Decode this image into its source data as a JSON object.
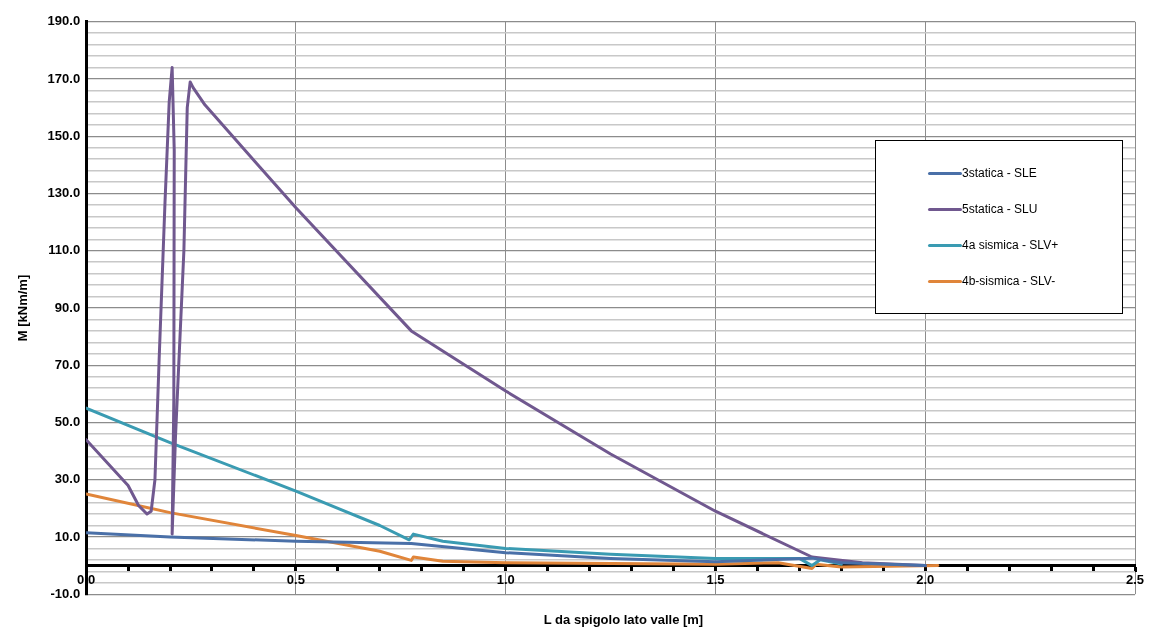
{
  "chart_data": {
    "type": "line",
    "xlabel": "L da spigolo lato valle [m]",
    "ylabel": "M [kNm/m]",
    "xlim": [
      0,
      2.5
    ],
    "ylim": [
      -10,
      190
    ],
    "xticks": [
      {
        "value": 0,
        "label": "0.0"
      },
      {
        "value": 0.1,
        "label": null
      },
      {
        "value": 0.2,
        "label": null
      },
      {
        "value": 0.3,
        "label": null
      },
      {
        "value": 0.4,
        "label": null
      },
      {
        "value": 0.5,
        "label": "0.5"
      },
      {
        "value": 0.6,
        "label": null
      },
      {
        "value": 0.7,
        "label": null
      },
      {
        "value": 0.8,
        "label": null
      },
      {
        "value": 0.9,
        "label": null
      },
      {
        "value": 1,
        "label": "1.0"
      },
      {
        "value": 1.1,
        "label": null
      },
      {
        "value": 1.2,
        "label": null
      },
      {
        "value": 1.3,
        "label": null
      },
      {
        "value": 1.4,
        "label": null
      },
      {
        "value": 1.5,
        "label": "1.5"
      },
      {
        "value": 1.6,
        "label": null
      },
      {
        "value": 1.7,
        "label": null
      },
      {
        "value": 1.8,
        "label": null
      },
      {
        "value": 1.9,
        "label": null
      },
      {
        "value": 2,
        "label": "2.0"
      },
      {
        "value": 2.1,
        "label": null
      },
      {
        "value": 2.2,
        "label": null
      },
      {
        "value": 2.3,
        "label": null
      },
      {
        "value": 2.4,
        "label": null
      },
      {
        "value": 2.5,
        "label": "2.5"
      }
    ],
    "yticks": [
      {
        "value": -10,
        "label": "-10.0"
      },
      {
        "value": -6,
        "label": null
      },
      {
        "value": -2,
        "label": null
      },
      {
        "value": 2,
        "label": null
      },
      {
        "value": 6,
        "label": null
      },
      {
        "value": 10,
        "label": "10.0"
      },
      {
        "value": 14,
        "label": null
      },
      {
        "value": 18,
        "label": null
      },
      {
        "value": 22,
        "label": null
      },
      {
        "value": 26,
        "label": null
      },
      {
        "value": 30,
        "label": "30.0"
      },
      {
        "value": 34,
        "label": null
      },
      {
        "value": 38,
        "label": null
      },
      {
        "value": 42,
        "label": null
      },
      {
        "value": 46,
        "label": null
      },
      {
        "value": 50,
        "label": "50.0"
      },
      {
        "value": 54,
        "label": null
      },
      {
        "value": 58,
        "label": null
      },
      {
        "value": 62,
        "label": null
      },
      {
        "value": 66,
        "label": null
      },
      {
        "value": 70,
        "label": "70.0"
      },
      {
        "value": 74,
        "label": null
      },
      {
        "value": 78,
        "label": null
      },
      {
        "value": 82,
        "label": null
      },
      {
        "value": 86,
        "label": null
      },
      {
        "value": 90,
        "label": "90.0"
      },
      {
        "value": 94,
        "label": null
      },
      {
        "value": 98,
        "label": null
      },
      {
        "value": 102,
        "label": null
      },
      {
        "value": 106,
        "label": null
      },
      {
        "value": 110,
        "label": "110.0"
      },
      {
        "value": 114,
        "label": null
      },
      {
        "value": 118,
        "label": null
      },
      {
        "value": 122,
        "label": null
      },
      {
        "value": 126,
        "label": null
      },
      {
        "value": 130,
        "label": "130.0"
      },
      {
        "value": 134,
        "label": null
      },
      {
        "value": 138,
        "label": null
      },
      {
        "value": 142,
        "label": null
      },
      {
        "value": 146,
        "label": null
      },
      {
        "value": 150,
        "label": "150.0"
      },
      {
        "value": 154,
        "label": null
      },
      {
        "value": 158,
        "label": null
      },
      {
        "value": 162,
        "label": null
      },
      {
        "value": 166,
        "label": null
      },
      {
        "value": 170,
        "label": "170.0"
      },
      {
        "value": 174,
        "label": null
      },
      {
        "value": 178,
        "label": null
      },
      {
        "value": 182,
        "label": null
      },
      {
        "value": 186,
        "label": null
      },
      {
        "value": 190,
        "label": "190.0"
      }
    ],
    "grid": true,
    "legend": "right",
    "marker": "none",
    "line_style": "solid",
    "series": [
      {
        "name": "3statica - SLE",
        "color": "#4a70a8",
        "x": [
          0,
          0.2,
          0.5,
          0.775,
          1.0,
          1.25,
          1.5,
          1.73,
          1.8,
          2.0
        ],
        "values": [
          11.5,
          10,
          8.5,
          7.7,
          4.5,
          2.5,
          1.3,
          2.6,
          1,
          0
        ]
      },
      {
        "name": "5statica - SLU",
        "color": "#70588f",
        "x": [
          0,
          0.1,
          0.125,
          0.145,
          0.155,
          0.164,
          0.174,
          0.188,
          0.198,
          0.205,
          0.21,
          0.209,
          0.205,
          0.213,
          0.233,
          0.241,
          0.248,
          0.255,
          0.283,
          0.5,
          0.775,
          1.0,
          1.25,
          1.5,
          1.73,
          1.85,
          2.0
        ],
        "values": [
          44,
          28,
          21,
          18,
          19,
          30,
          72,
          127,
          162,
          174,
          145,
          58,
          11,
          45,
          110,
          160,
          169,
          167,
          161,
          125,
          82,
          61,
          39,
          19,
          3,
          1,
          0
        ]
      },
      {
        "name": "4a sismica - SLV+",
        "color": "#3a9bb2",
        "x": [
          0,
          0.2,
          0.5,
          0.7,
          0.77,
          0.78,
          0.85,
          1.0,
          1.25,
          1.5,
          1.7,
          1.73,
          1.75,
          1.8
        ],
        "values": [
          55,
          43,
          26,
          14,
          9,
          11,
          8.5,
          6,
          4,
          2.5,
          2.5,
          0,
          2,
          0.5
        ]
      },
      {
        "name": "4b-sismica - SLV-",
        "color": "#e0853a",
        "x": [
          0,
          0.2,
          0.5,
          0.7,
          0.775,
          0.78,
          0.85,
          1.0,
          1.5,
          1.65,
          1.73,
          1.74,
          1.8,
          2.03
        ],
        "values": [
          25,
          18.5,
          10.5,
          5,
          1.8,
          3,
          1.5,
          1,
          0.5,
          1,
          -1,
          0.5,
          -0.5,
          0
        ]
      }
    ]
  }
}
